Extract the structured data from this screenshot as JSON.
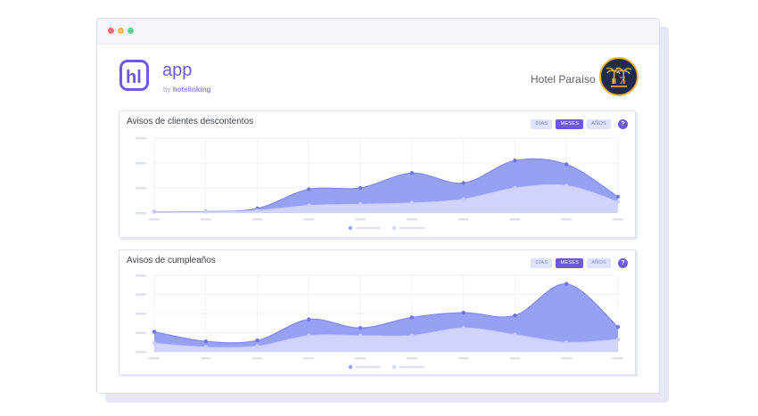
{
  "app": {
    "logo_letters": "hl",
    "name": "app",
    "by_prefix": "by",
    "by_brand": "hotelinking"
  },
  "header": {
    "hotel_name": "Hotel Paraíso"
  },
  "colors": {
    "accent": "#6b5ae0",
    "series_dark": "#8c96f2",
    "series_light": "#d3d7fb"
  },
  "panels": [
    {
      "title": "Avisos de clientes descontentos",
      "buttons": [
        "DÍAS",
        "MESES",
        "AÑOS"
      ],
      "active_button": "MESES",
      "help": "?"
    },
    {
      "title": "Avisos de cumpleaños",
      "buttons": [
        "DÍAS",
        "MESES",
        "AÑOS"
      ],
      "active_button": "MESES",
      "help": "?"
    }
  ],
  "chart_data": [
    {
      "type": "area",
      "ylim": [
        0,
        3
      ],
      "x_count": 10,
      "series": [
        {
          "values": [
            0.05,
            0.06,
            0.18,
            0.95,
            1.0,
            1.6,
            1.2,
            2.1,
            1.95,
            0.65
          ]
        },
        {
          "values": [
            0.05,
            0.05,
            0.1,
            0.3,
            0.35,
            0.4,
            0.55,
            1.0,
            1.1,
            0.45
          ]
        }
      ]
    },
    {
      "type": "area",
      "ylim": [
        0,
        4
      ],
      "x_count": 10,
      "series": [
        {
          "values": [
            1.05,
            0.55,
            0.6,
            1.7,
            1.25,
            1.8,
            2.05,
            1.9,
            3.55,
            1.3
          ]
        },
        {
          "values": [
            0.45,
            0.25,
            0.3,
            0.85,
            0.85,
            0.85,
            1.25,
            0.9,
            0.5,
            0.65
          ]
        }
      ]
    }
  ]
}
